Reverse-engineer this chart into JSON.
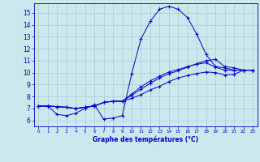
{
  "title": "Graphe des températures (°C)",
  "bg_color": "#cce8ee",
  "line_color": "#0000cc",
  "grid_color": "#aacccc",
  "xlim": [
    -0.5,
    23.5
  ],
  "ylim": [
    5.5,
    15.8
  ],
  "xticks": [
    0,
    1,
    2,
    3,
    4,
    5,
    6,
    7,
    8,
    9,
    10,
    11,
    12,
    13,
    14,
    15,
    16,
    17,
    18,
    19,
    20,
    21,
    22,
    23
  ],
  "yticks": [
    6,
    7,
    8,
    9,
    10,
    11,
    12,
    13,
    14,
    15
  ],
  "line1_x": [
    0,
    1,
    2,
    3,
    4,
    5,
    6,
    7,
    8,
    9,
    10,
    11,
    12,
    13,
    14,
    15,
    16,
    17,
    18,
    19,
    20,
    21,
    22,
    23
  ],
  "line1_y": [
    7.2,
    7.2,
    6.5,
    6.4,
    6.6,
    7.0,
    7.3,
    6.1,
    6.2,
    6.4,
    9.9,
    12.8,
    14.3,
    15.3,
    15.55,
    15.3,
    14.6,
    13.2,
    11.5,
    10.5,
    10.4,
    10.2,
    10.2,
    10.2
  ],
  "line2_x": [
    0,
    1,
    2,
    3,
    4,
    5,
    6,
    7,
    8,
    9,
    10,
    11,
    12,
    13,
    14,
    15,
    16,
    17,
    18,
    19,
    20,
    21,
    22,
    23
  ],
  "line2_y": [
    7.2,
    7.2,
    7.15,
    7.1,
    7.0,
    7.1,
    7.2,
    7.5,
    7.6,
    7.6,
    8.1,
    8.6,
    9.1,
    9.55,
    9.9,
    10.15,
    10.45,
    10.75,
    11.0,
    11.1,
    10.5,
    10.4,
    10.2,
    10.2
  ],
  "line3_x": [
    0,
    1,
    2,
    3,
    4,
    5,
    6,
    7,
    8,
    9,
    10,
    11,
    12,
    13,
    14,
    15,
    16,
    17,
    18,
    19,
    20,
    21,
    22,
    23
  ],
  "line3_y": [
    7.2,
    7.2,
    7.15,
    7.1,
    7.0,
    7.1,
    7.2,
    7.5,
    7.6,
    7.6,
    8.2,
    8.8,
    9.3,
    9.7,
    10.05,
    10.25,
    10.5,
    10.7,
    10.82,
    10.45,
    10.2,
    10.2,
    10.2,
    10.2
  ],
  "line4_x": [
    0,
    1,
    2,
    3,
    4,
    5,
    6,
    7,
    8,
    9,
    10,
    11,
    12,
    13,
    14,
    15,
    16,
    17,
    18,
    19,
    20,
    21,
    22,
    23
  ],
  "line4_y": [
    7.2,
    7.2,
    7.15,
    7.1,
    7.0,
    7.1,
    7.2,
    7.5,
    7.6,
    7.6,
    7.85,
    8.15,
    8.55,
    8.85,
    9.25,
    9.55,
    9.75,
    9.92,
    10.05,
    10.0,
    9.8,
    9.85,
    10.2,
    10.2
  ]
}
